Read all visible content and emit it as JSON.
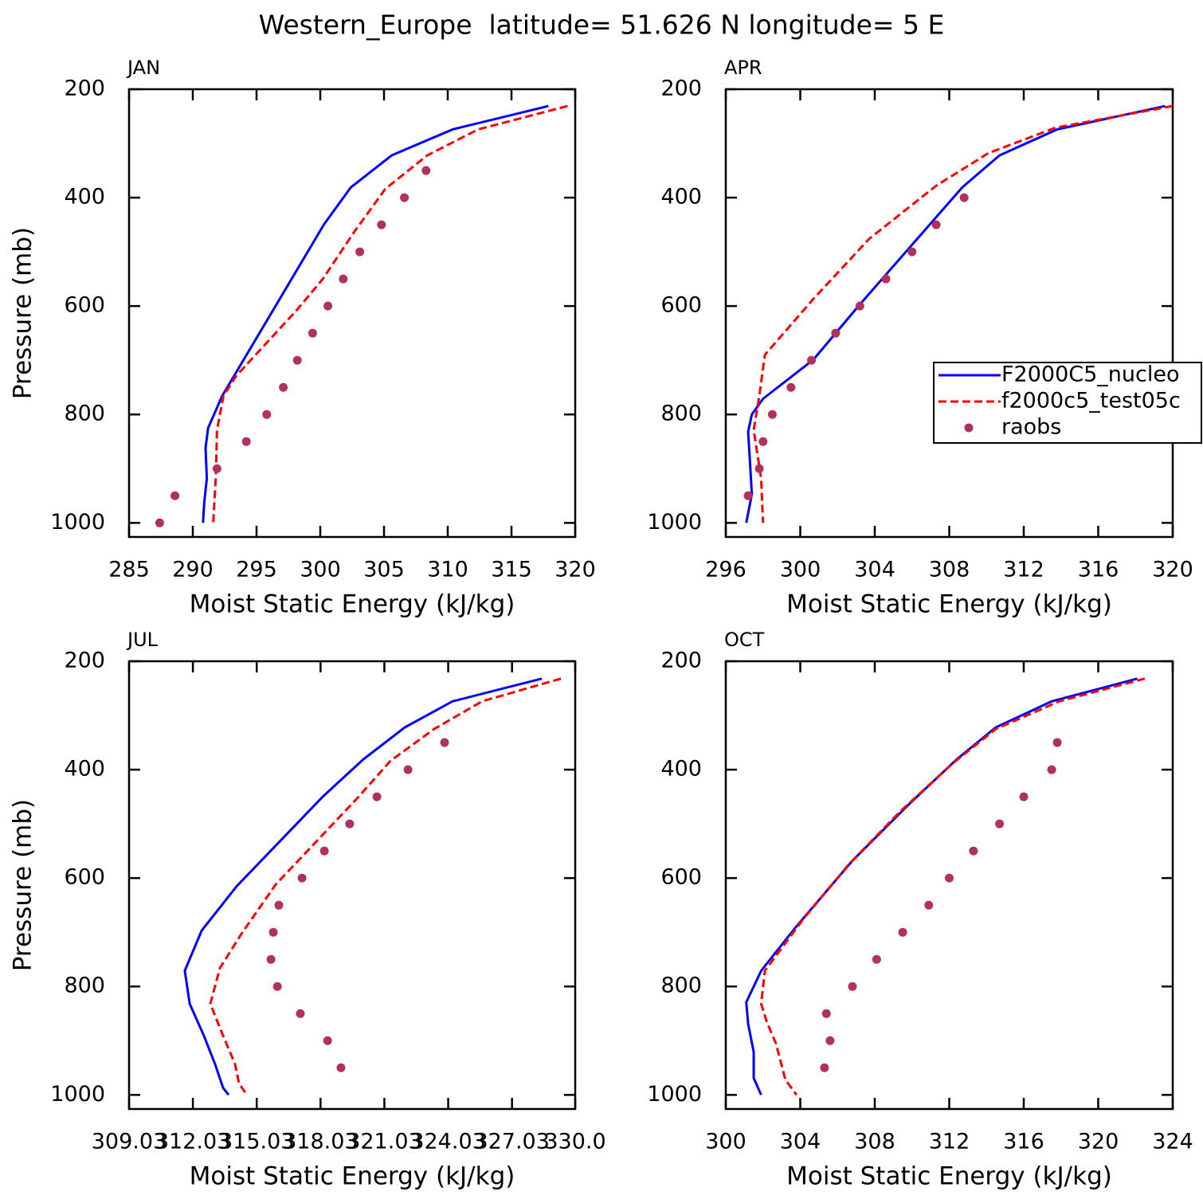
{
  "title": "Western_Europe  latitude= 51.626 N longitude= 5 E",
  "chart_data": [
    {
      "type": "line",
      "title": "JAN",
      "xlabel": "Moist Static Energy (kJ/kg)",
      "ylabel": "Pressure (mb)",
      "xlim": [
        285,
        320
      ],
      "xticks": [
        285,
        290,
        295,
        300,
        305,
        310,
        315,
        320
      ],
      "ylim": [
        1026,
        200
      ],
      "yticks": [
        200,
        400,
        600,
        800,
        1000
      ],
      "series": [
        {
          "color": "#0000ff",
          "mode": "line",
          "x": [
            317.9,
            310.4,
            305.6,
            302.4,
            300.3,
            292.3,
            291.2,
            291.0,
            291.1,
            290.9,
            290.8
          ],
          "y": [
            231,
            274,
            322,
            381,
            449,
            766,
            825,
            862,
            918,
            962,
            1000
          ]
        },
        {
          "color": "#ff0000",
          "mode": "dash",
          "x": [
            319.4,
            312.4,
            308.4,
            305.1,
            302.7,
            300.2,
            298.1,
            293.4,
            292.4,
            291.9,
            291.8,
            291.6
          ],
          "y": [
            231,
            274,
            322,
            384,
            462,
            550,
            609,
            729,
            766,
            829,
            918,
            1000
          ]
        },
        {
          "color": "#b03060",
          "mode": "markers",
          "x": [
            308.3,
            306.6,
            304.8,
            303.1,
            301.8,
            300.6,
            299.4,
            298.2,
            297.1,
            295.8,
            294.2,
            291.9,
            288.6,
            287.4
          ],
          "y": [
            350,
            400,
            450,
            500,
            550,
            600,
            650,
            700,
            750,
            800,
            850,
            900,
            950,
            1000
          ]
        }
      ]
    },
    {
      "type": "line",
      "title": "APR",
      "xlabel": "Moist Static Energy (kJ/kg)",
      "legend": "right",
      "xlim": [
        296,
        320
      ],
      "xticks": [
        296,
        300,
        304,
        308,
        312,
        316,
        320
      ],
      "ylim": [
        1026,
        200
      ],
      "yticks": [
        200,
        400,
        600,
        800,
        1000
      ],
      "series": [
        {
          "name": "F2000C5_nucleo",
          "color": "#0000ff",
          "mode": "line",
          "x": [
            319.6,
            313.8,
            310.7,
            308.7,
            303.2,
            300.7,
            298.0,
            297.4,
            297.2,
            297.3,
            297.4,
            297.1
          ],
          "y": [
            231,
            274,
            322,
            381,
            597,
            699,
            771,
            800,
            832,
            888,
            947,
            1000
          ]
        },
        {
          "name": "f2000c5_test05c",
          "color": "#ff0000",
          "mode": "dash",
          "x": [
            320.0,
            313.7,
            310.1,
            307.3,
            303.7,
            300.7,
            298.1,
            297.8,
            297.5,
            297.9,
            298.0
          ],
          "y": [
            231,
            271,
            318,
            378,
            476,
            587,
            690,
            766,
            829,
            918,
            1000
          ]
        },
        {
          "name": "raobs",
          "color": "#b03060",
          "mode": "markers",
          "x": [
            308.8,
            307.3,
            306.0,
            304.6,
            303.2,
            301.9,
            300.6,
            299.5,
            298.5,
            298.0,
            297.8,
            297.2
          ],
          "y": [
            400,
            450,
            500,
            550,
            600,
            650,
            700,
            750,
            800,
            850,
            900,
            950
          ]
        }
      ]
    },
    {
      "type": "line",
      "title": "JUL",
      "xlabel": "Moist Static Energy (kJ/kg)",
      "ylabel": "Pressure (mb)",
      "xlim": [
        309.03,
        330
      ],
      "xticks": [
        309.03,
        312.03,
        315.03,
        318.03,
        321.03,
        324.03,
        327.03,
        {
          "value": 330,
          "label": "330.0"
        }
      ],
      "ylim": [
        1026,
        200
      ],
      "yticks": [
        200,
        400,
        600,
        800,
        1000
      ],
      "series": [
        {
          "color": "#0000ff",
          "mode": "line",
          "x": [
            328.43,
            324.23,
            321.99,
            320.04,
            318.13,
            314.09,
            312.44,
            311.65,
            311.88,
            312.55,
            313.07,
            313.45,
            313.71
          ],
          "y": [
            232,
            274,
            322,
            381,
            450,
            615,
            697,
            771,
            832,
            891,
            943,
            987,
            1000
          ]
        },
        {
          "color": "#ff0000",
          "mode": "dash",
          "x": [
            329.33,
            325.62,
            323.37,
            321.31,
            319.82,
            315.92,
            314.31,
            313.3,
            312.85,
            313.45,
            314.01,
            314.2,
            314.57
          ],
          "y": [
            232,
            274,
            325,
            384,
            450,
            612,
            703,
            766,
            832,
            891,
            943,
            979,
            1000
          ]
        },
        {
          "color": "#b03060",
          "mode": "markers",
          "x": [
            323.86,
            322.14,
            320.68,
            319.4,
            318.21,
            317.16,
            316.07,
            315.81,
            315.7,
            316.0,
            317.08,
            318.36,
            318.99
          ],
          "y": [
            350,
            400,
            450,
            500,
            550,
            600,
            650,
            700,
            750,
            800,
            850,
            900,
            950
          ]
        }
      ]
    },
    {
      "type": "line",
      "title": "OCT",
      "xlabel": "Moist Static Energy (kJ/kg)",
      "xlim": [
        300,
        324
      ],
      "xticks": [
        300,
        304,
        308,
        312,
        316,
        320,
        324
      ],
      "ylim": [
        1026,
        200
      ],
      "yticks": [
        200,
        400,
        600,
        800,
        1000
      ],
      "series": [
        {
          "color": "#0000ff",
          "mode": "line",
          "x": [
            322.1,
            317.5,
            314.5,
            312.4,
            309.8,
            306.8,
            303.7,
            301.9,
            301.1,
            301.2,
            301.5,
            301.5,
            301.9
          ],
          "y": [
            232,
            274,
            322,
            381,
            465,
            568,
            693,
            771,
            829,
            869,
            921,
            969,
            1000
          ]
        },
        {
          "color": "#ff0000",
          "mode": "dash",
          "x": [
            322.5,
            317.9,
            314.5,
            312.2,
            309.4,
            306.6,
            304.2,
            302.1,
            301.9,
            302.2,
            302.7,
            303.2,
            303.8
          ],
          "y": [
            232,
            274,
            325,
            388,
            476,
            575,
            674,
            771,
            832,
            865,
            906,
            972,
            1000
          ]
        },
        {
          "color": "#b03060",
          "mode": "markers",
          "x": [
            317.8,
            317.5,
            316.0,
            314.7,
            313.3,
            312.0,
            310.9,
            309.5,
            308.1,
            306.8,
            305.4,
            305.6,
            305.3
          ],
          "y": [
            350,
            400,
            450,
            500,
            550,
            600,
            650,
            700,
            750,
            800,
            850,
            900,
            950
          ]
        }
      ]
    }
  ]
}
